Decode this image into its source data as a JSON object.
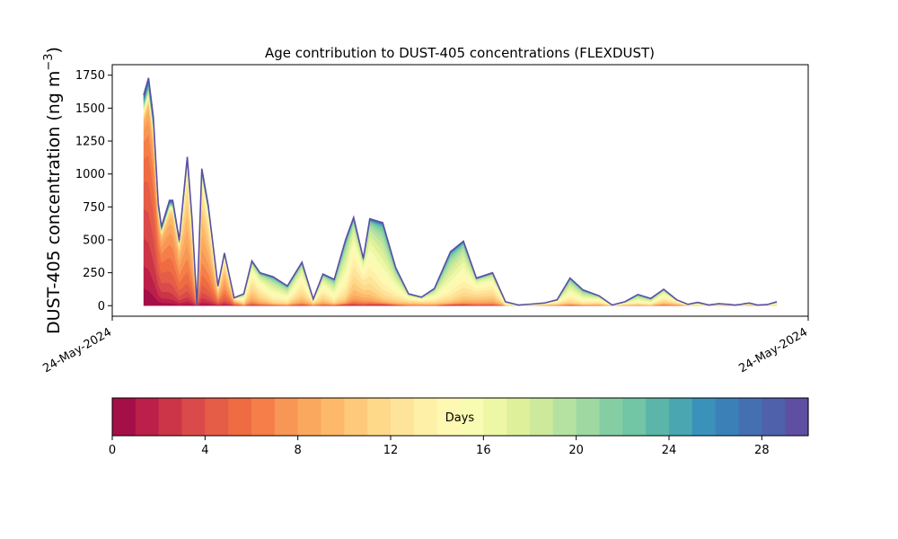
{
  "chart_data": {
    "type": "area",
    "title": "Age contribution to DUST-405 concentrations (FLEXDUST)",
    "ylabel_main": "DUST-405 concentration (ng m",
    "ylabel_sup": "−3",
    "ylabel_close": ")",
    "xlabel": "",
    "x_tick_labels": [
      "24-May-2024",
      "24-May-2024"
    ],
    "ylim": [
      -80,
      1830
    ],
    "y_ticks": [
      0,
      250,
      500,
      750,
      1000,
      1250,
      1500,
      1750
    ],
    "grid": false,
    "colorbar": {
      "label": "Days",
      "range": [
        0,
        30
      ],
      "ticks": [
        0,
        4,
        8,
        12,
        16,
        20,
        24,
        28
      ],
      "colors": [
        "#a50f48",
        "#bc1f49",
        "#cc3447",
        "#db4a4a",
        "#e55c47",
        "#ef6b41",
        "#f57e49",
        "#f89655",
        "#fba85f",
        "#fdb969",
        "#fec97b",
        "#fed98a",
        "#fee49a",
        "#fff0a8",
        "#fef8b2",
        "#f7fcb2",
        "#edf7a6",
        "#dff09b",
        "#cce99c",
        "#b5e2a0",
        "#9ed9a2",
        "#85cea4",
        "#72c5a5",
        "#5bb6a9",
        "#4aa6b1",
        "#3a92bb",
        "#3b81b8",
        "#4470b1",
        "#4e61aa",
        "#5e4fa2"
      ]
    },
    "x": [
      0.0,
      0.15,
      0.3,
      0.45,
      0.55,
      0.7,
      0.8,
      0.9,
      1.1,
      1.35,
      1.5,
      1.65,
      1.8,
      2.0,
      2.3,
      2.5,
      2.8,
      3.1,
      3.35,
      3.6,
      4.0,
      4.45,
      4.9,
      5.25,
      5.55,
      5.9,
      6.25,
      6.5,
      6.8,
      7.0,
      7.4,
      7.8,
      8.2,
      8.6,
      9.0,
      9.5,
      9.9,
      10.3,
      10.8,
      11.2,
      11.6,
      12.0,
      12.4,
      12.8,
      13.2,
      13.6,
      14.1,
      14.5,
      14.9,
      15.3,
      15.7,
      16.1,
      16.5,
      16.85,
      17.15,
      17.5,
      17.8,
      18.1,
      18.3,
      18.45,
      18.6,
      18.75,
      19.0,
      19.3,
      19.6
    ],
    "series_totals": [
      1600,
      1730,
      1430,
      780,
      600,
      720,
      800,
      800,
      500,
      1130,
      650,
      0,
      1040,
      760,
      150,
      400,
      60,
      90,
      340,
      250,
      220,
      150,
      330,
      50,
      240,
      200,
      500,
      670,
      360,
      660,
      630,
      290,
      90,
      65,
      130,
      410,
      490,
      210,
      250,
      30,
      5,
      12,
      20,
      45,
      210,
      120,
      75,
      5,
      30,
      85,
      55,
      125,
      45,
      10,
      25,
      5,
      15,
      10,
      5,
      8,
      15,
      20,
      5,
      8,
      30
    ]
  }
}
